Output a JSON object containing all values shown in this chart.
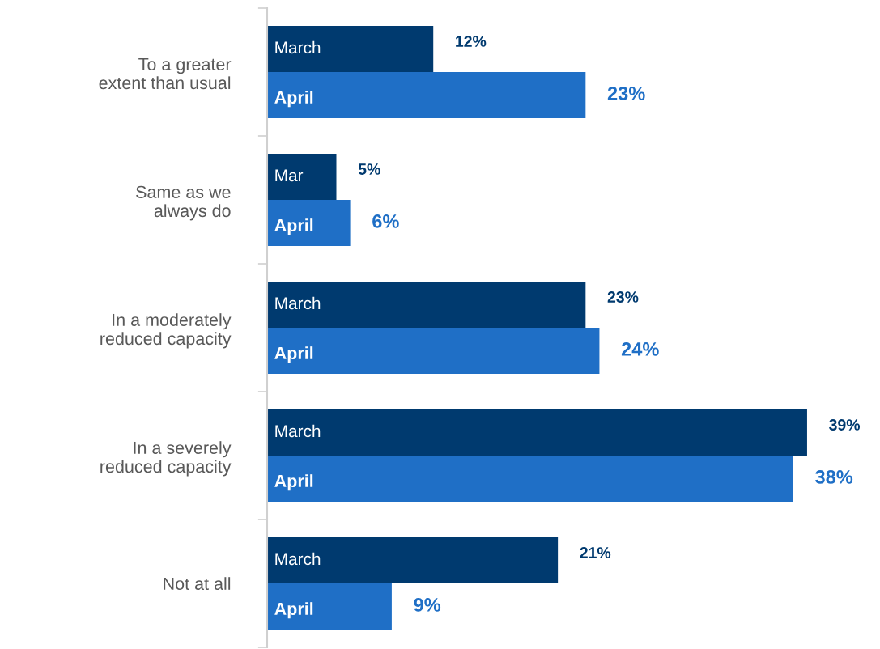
{
  "chart_data": {
    "type": "bar",
    "orientation": "horizontal",
    "categories": [
      "To a greater extent than usual",
      "Same as we always do",
      "In a moderately reduced capacity",
      "In a severely reduced capacity",
      "Not at all"
    ],
    "series": [
      {
        "name": "March",
        "color": "#003a6f",
        "values": [
          12,
          5,
          23,
          39,
          21
        ],
        "value_labels": [
          "12%",
          "5%",
          "23%",
          "39%",
          "21%"
        ]
      },
      {
        "name": "April",
        "color": "#1f6fc6",
        "values": [
          23,
          6,
          24,
          38,
          9
        ],
        "value_labels": [
          "23%",
          "6%",
          "24%",
          "38%",
          "9%"
        ]
      }
    ],
    "annotations": [
      {
        "text": "Mar",
        "x": 0,
        "y": "Same as we always do"
      }
    ],
    "grid": false,
    "legend": false
  }
}
